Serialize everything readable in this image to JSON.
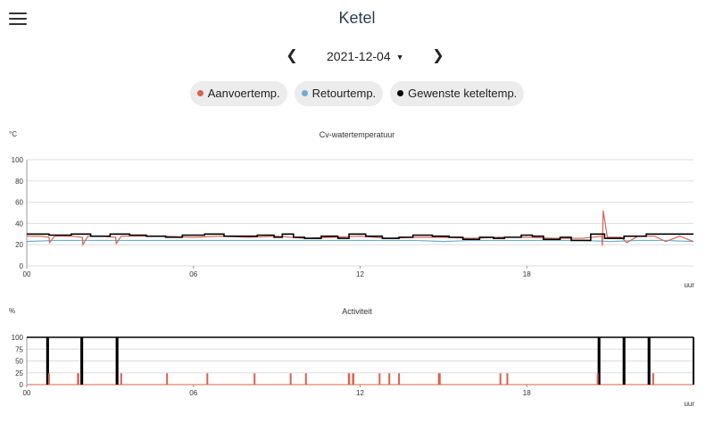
{
  "header": {
    "title": "Ketel",
    "menu_icon": "hamburger-icon"
  },
  "date_nav": {
    "date": "2021-12-04",
    "prev_icon": "chevron-left-icon",
    "next_icon": "chevron-right-icon"
  },
  "legend": [
    {
      "label": "Aanvoertemp.",
      "color": "#d9624e"
    },
    {
      "label": "Retourtemp.",
      "color": "#6baed6"
    },
    {
      "label": "Gewenste keteltemp.",
      "color": "#000000"
    }
  ],
  "chart_data": [
    {
      "type": "line",
      "title": "Cv-watertemperatuur",
      "ylabel": "°C",
      "xlabel": "uur",
      "ylim": [
        0,
        100
      ],
      "xlim": [
        0,
        24
      ],
      "y_ticks": [
        "0",
        "20",
        "40",
        "60",
        "80",
        "100"
      ],
      "x_ticks": [
        "00",
        "06",
        "12",
        "18"
      ],
      "grid": true,
      "series": [
        {
          "name": "Gewenste keteltemp.",
          "color": "#000000",
          "step": true,
          "x": [
            0,
            0.8,
            1.6,
            2.3,
            3.0,
            3.7,
            4.3,
            5.0,
            5.6,
            6.4,
            7.1,
            7.7,
            8.3,
            8.9,
            9.2,
            9.6,
            10.0,
            10.6,
            11.2,
            11.6,
            12.2,
            12.8,
            13.4,
            13.9,
            14.6,
            15.2,
            15.7,
            16.3,
            16.8,
            17.2,
            17.8,
            18.2,
            18.6,
            19.2,
            19.6,
            20.3,
            20.8,
            21.5,
            22.3,
            23.0,
            24.0
          ],
          "y": [
            30,
            29,
            30,
            28,
            30,
            29,
            28,
            27,
            29,
            30,
            28,
            28,
            29,
            27,
            30,
            27,
            26,
            28,
            26,
            30,
            28,
            26,
            27,
            29,
            28,
            27,
            25,
            27,
            26,
            27,
            29,
            28,
            25,
            27,
            24,
            30,
            26,
            28,
            30,
            30,
            30
          ]
        },
        {
          "name": "Aanvoertemp.",
          "color": "#d9624e",
          "x": [
            0,
            0.5,
            0.8,
            0.82,
            1.0,
            1.6,
            2.0,
            2.02,
            2.2,
            2.7,
            3.2,
            3.22,
            3.4,
            4.0,
            5.0,
            6.0,
            7.0,
            8.0,
            9.0,
            10.0,
            11.0,
            12.0,
            13.0,
            14.0,
            15.0,
            16.0,
            17.0,
            18.0,
            19.0,
            20.0,
            20.7,
            20.72,
            20.75,
            20.9,
            21.4,
            21.6,
            22.0,
            22.6,
            23.0,
            23.5,
            24.0
          ],
          "y": [
            28,
            28,
            27,
            22,
            28,
            28,
            27,
            20,
            28,
            28,
            27,
            21,
            28,
            28,
            28,
            27,
            28,
            27,
            28,
            26,
            27,
            28,
            26,
            27,
            27,
            26,
            27,
            27,
            26,
            26,
            28,
            19,
            52,
            27,
            27,
            22,
            28,
            28,
            23,
            28,
            23
          ]
        },
        {
          "name": "Retourtemp.",
          "color": "#6baed6",
          "x": [
            0,
            1,
            2,
            3,
            4,
            5,
            6,
            7,
            8,
            9,
            10,
            11,
            12,
            13,
            14,
            15,
            16,
            17,
            18,
            19,
            20,
            21,
            22,
            23,
            24
          ],
          "y": [
            23,
            24,
            24,
            24,
            24,
            24,
            24,
            24,
            24,
            24,
            24,
            24,
            24,
            24,
            24,
            23,
            24,
            24,
            24,
            24,
            24,
            23,
            24,
            24,
            23
          ]
        }
      ]
    },
    {
      "type": "bar",
      "title": "Activiteit",
      "ylabel": "%",
      "xlabel": "uur",
      "ylim": [
        0,
        100
      ],
      "xlim": [
        0,
        24
      ],
      "y_ticks": [
        "0",
        "25",
        "50",
        "75",
        "100"
      ],
      "x_ticks": [
        "00",
        "06",
        "12",
        "18"
      ],
      "grid": true,
      "series": [
        {
          "name": "Gewenste keteltemp.",
          "color": "#000000",
          "x": [
            0.75,
            1.98,
            3.25,
            20.6,
            21.5,
            22.4,
            24.0
          ],
          "width": [
            0.1,
            0.1,
            0.1,
            0.1,
            0.1,
            0.1,
            0.05
          ],
          "values": [
            100,
            100,
            100,
            100,
            100,
            100,
            100
          ]
        },
        {
          "name": "Aanvoertemp.",
          "color": "#d9624e",
          "x": [
            0.8,
            1.85,
            3.4,
            5.05,
            6.5,
            8.2,
            9.5,
            10.05,
            11.6,
            11.75,
            12.7,
            13.05,
            13.4,
            14.85,
            17.05,
            17.3,
            20.55,
            22.55
          ],
          "width": [
            0.04,
            0.08,
            0.04,
            0.04,
            0.04,
            0.04,
            0.04,
            0.04,
            0.08,
            0.08,
            0.04,
            0.04,
            0.04,
            0.1,
            0.06,
            0.06,
            0.04,
            0.04
          ],
          "values": [
            24,
            24,
            24,
            24,
            24,
            24,
            24,
            24,
            24,
            24,
            24,
            24,
            24,
            24,
            24,
            24,
            24,
            24
          ]
        }
      ]
    }
  ]
}
